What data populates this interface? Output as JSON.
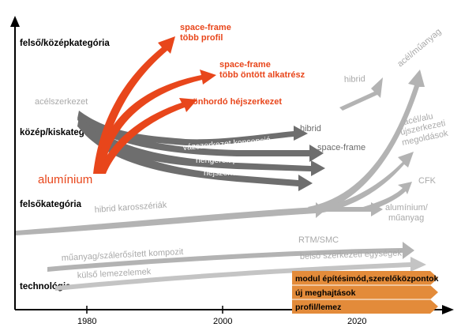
{
  "colors": {
    "red": "#e8461b",
    "dark_gray": "#6e6e6e",
    "light_gray": "#a9a9a9",
    "orange_box": "#e38b3a",
    "axis": "#000000"
  },
  "y_axis": {
    "categories": [
      "felső/középkategória",
      "közép/kiskategória",
      "felsőkategória",
      "technológia"
    ]
  },
  "x_axis": {
    "years": [
      "1980",
      "2000",
      "2020"
    ]
  },
  "red_group": {
    "source": "alumínium",
    "targets": [
      [
        "space-frame",
        "több profil"
      ],
      [
        "space-frame",
        "több öntött alkatrész"
      ],
      [
        "önhordó héjszerkezet"
      ]
    ]
  },
  "steel_group": {
    "source": "acélszerkezet",
    "labels": {
      "hibrid": "hibrid",
      "frame_concept": "vázszerkezet koncepció",
      "rolled_profiles": "hengerelt profilok",
      "shell": "héjszerkezet",
      "space_frame": "space-frame"
    }
  },
  "upper_right": {
    "hibrid": "hibrid",
    "steel_plastic": "acél/műanyag",
    "steel_alu": [
      "acél/alu",
      "újszerkezeti",
      "megoldások"
    ],
    "cfk": "CFK",
    "alu_plastic": [
      "alumínium/",
      "műanyag"
    ],
    "hybrid_body": "hibrid karosszériák"
  },
  "technology": {
    "composite": "műanyag/szálerősített kompozit",
    "rtm": "RTM/SMC",
    "inner_units": "belső szerkezeti egységek",
    "outer_panels": "külső lemezelemek",
    "boxes": [
      "modul építésimód,szerelőközpontok",
      "új meghajtások",
      "profil/lemez"
    ]
  }
}
